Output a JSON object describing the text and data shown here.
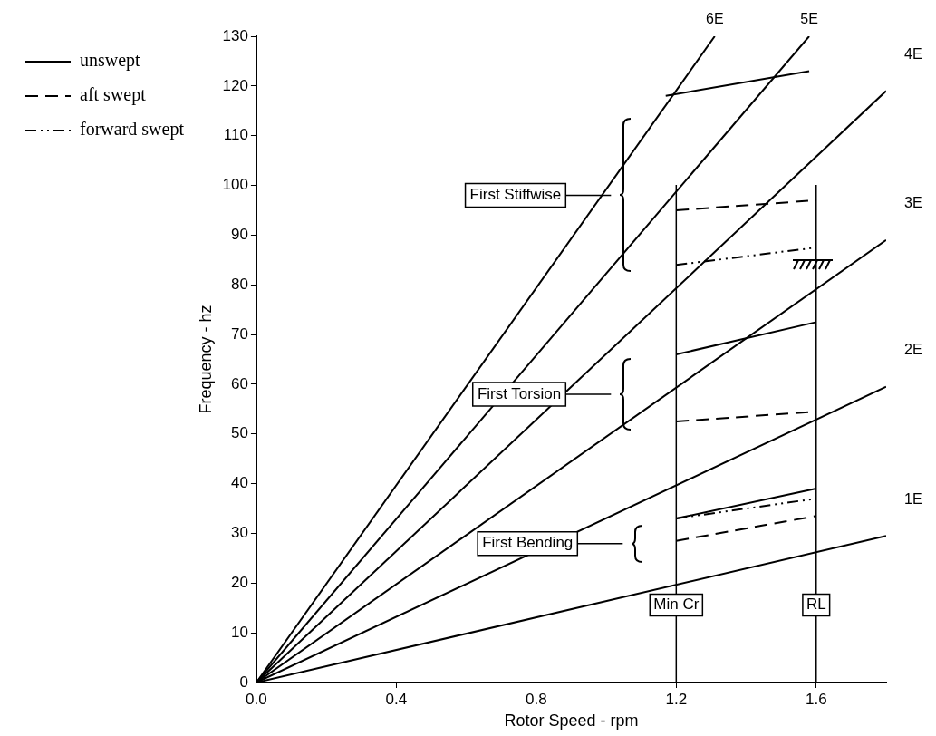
{
  "chart_data": {
    "type": "line",
    "xlabel": "Rotor Speed - rpm",
    "ylabel": "Frequency - hz",
    "xlim": [
      0,
      1.8
    ],
    "ylim": [
      0,
      130
    ],
    "xticks": [
      {
        "value": 0,
        "label": "0.0"
      },
      {
        "value": 0.4,
        "label": "0.4"
      },
      {
        "value": 0.8,
        "label": "0.8"
      },
      {
        "value": 1.2,
        "label": "1.2"
      },
      {
        "value": 1.6,
        "label": "1.6"
      }
    ],
    "yticks": [
      0,
      10,
      20,
      30,
      40,
      50,
      60,
      70,
      80,
      90,
      100,
      110,
      120,
      130
    ],
    "grid": false,
    "legend": "left",
    "marker": "none",
    "series": [
      {
        "name": "1E",
        "color": "#000000",
        "x": [
          0,
          1.8
        ],
        "values": [
          0,
          29.5
        ]
      },
      {
        "name": "2E",
        "color": "#000000",
        "x": [
          0,
          1.8
        ],
        "values": [
          0,
          59.5
        ]
      },
      {
        "name": "3E",
        "color": "#000000",
        "x": [
          0,
          1.8
        ],
        "values": [
          0,
          89
        ]
      },
      {
        "name": "4E",
        "color": "#000000",
        "x": [
          0,
          1.8
        ],
        "values": [
          0,
          119
        ]
      },
      {
        "name": "5E",
        "color": "#000000",
        "x": [
          0,
          1.58
        ],
        "values": [
          0,
          130
        ]
      },
      {
        "name": "6E",
        "color": "#000000",
        "x": [
          0,
          1.31
        ],
        "values": [
          0,
          130
        ]
      },
      {
        "name": "unswept",
        "color": "#000000",
        "line_style": "solid",
        "x": [
          1.17,
          1.58
        ],
        "values": [
          118,
          123
        ]
      },
      {
        "color": "#000000",
        "line_style": "solid",
        "x": [
          1.2,
          1.6
        ],
        "values": [
          66,
          72.5
        ]
      },
      {
        "color": "#000000",
        "line_style": "solid",
        "x": [
          1.2,
          1.6
        ],
        "values": [
          33,
          39
        ]
      },
      {
        "name": "aft swept",
        "color": "#000000",
        "line_style": "dashed",
        "x": [
          1.2,
          1.6
        ],
        "values": [
          95,
          97
        ]
      },
      {
        "color": "#000000",
        "line_style": "dashed",
        "x": [
          1.2,
          1.6
        ],
        "values": [
          52.5,
          54.5
        ]
      },
      {
        "color": "#000000",
        "line_style": "dashed",
        "x": [
          1.2,
          1.6
        ],
        "values": [
          28.5,
          33.5
        ]
      },
      {
        "name": "forward swept",
        "color": "#000000",
        "line_style": "dashdot",
        "x": [
          1.2,
          1.6
        ],
        "values": [
          84,
          87.5
        ]
      },
      {
        "color": "#000000",
        "line_style": "dashdot",
        "x": [
          1.2,
          1.6
        ],
        "values": [
          33,
          37
        ]
      }
    ],
    "ref_lines": [
      {
        "axis": "x",
        "value": 1.2,
        "label": "Min Cr"
      },
      {
        "axis": "x",
        "value": 1.6,
        "label": "RL"
      }
    ],
    "annotations": [
      "First Stiffwise",
      "First Torsion",
      "First Bending"
    ]
  }
}
